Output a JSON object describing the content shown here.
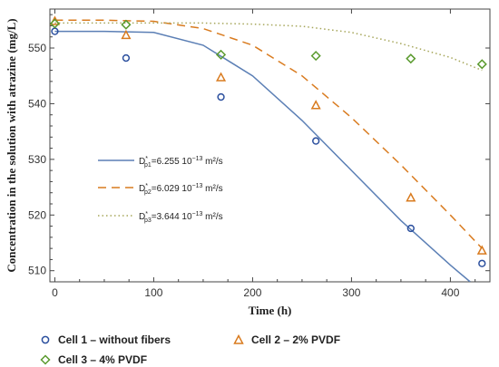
{
  "chart_data": {
    "type": "scatter",
    "xlabel": "Time (h)",
    "ylabel": "Concentration in the solution with atrazine (mg/L)",
    "xlim": [
      -5,
      440
    ],
    "ylim": [
      508,
      557
    ],
    "x_ticks": [
      0,
      100,
      200,
      300,
      400
    ],
    "y_ticks": [
      510,
      520,
      530,
      540,
      550
    ],
    "grid": false,
    "legend_position": "bottom",
    "series": [
      {
        "name": "Cell 1 – without fibers",
        "marker": "circle",
        "color": "#2b4f9e",
        "x": [
          0,
          72,
          168,
          264,
          360,
          432
        ],
        "y": [
          553.0,
          548.2,
          541.2,
          533.3,
          517.6,
          511.3
        ]
      },
      {
        "name": "Cell 2 – 2% PVDF",
        "marker": "triangle",
        "color": "#d97b1f",
        "x": [
          0,
          72,
          168,
          264,
          360,
          432
        ],
        "y": [
          554.8,
          552.3,
          544.7,
          539.7,
          523.1,
          513.6
        ]
      },
      {
        "name": "Cell 3 – 4% PVDF",
        "marker": "diamond",
        "color": "#5a9a2e",
        "x": [
          0,
          72,
          168,
          264,
          360,
          432
        ],
        "y": [
          554.4,
          554.2,
          548.8,
          548.6,
          548.1,
          547.1
        ]
      }
    ],
    "fits": [
      {
        "label_main": "D",
        "label_sup": "*",
        "label_sub": "p1",
        "label_value": "=6.255 10",
        "label_exp": "−13",
        "label_unit": " m²/s",
        "style": "solid",
        "color": "#5b7fb5",
        "x": [
          0,
          50,
          100,
          150,
          200,
          250,
          300,
          350,
          400,
          420
        ],
        "y": [
          553.0,
          553.0,
          552.8,
          550.5,
          545.0,
          537.0,
          528.0,
          519.0,
          511.0,
          508.0
        ]
      },
      {
        "label_main": "D",
        "label_sup": "*",
        "label_sub": "p2",
        "label_value": "=6.029 10",
        "label_exp": "−13",
        "label_unit": " m²/s",
        "style": "dashed",
        "color": "#d97b1f",
        "x": [
          0,
          50,
          100,
          150,
          200,
          250,
          300,
          350,
          400,
          432
        ],
        "y": [
          555.0,
          555.0,
          554.8,
          553.5,
          550.5,
          545.0,
          537.5,
          529.0,
          520.0,
          514.0
        ]
      },
      {
        "label_main": "D",
        "label_sup": "*",
        "label_sub": "p3",
        "label_value": "=3.644 10",
        "label_exp": "−13",
        "label_unit": " m²/s",
        "style": "dotted",
        "color": "#a6a65a",
        "x": [
          0,
          50,
          100,
          150,
          200,
          250,
          300,
          350,
          400,
          432
        ],
        "y": [
          554.5,
          554.5,
          554.5,
          554.5,
          554.3,
          553.9,
          552.8,
          550.8,
          548.3,
          546.0
        ]
      }
    ]
  }
}
